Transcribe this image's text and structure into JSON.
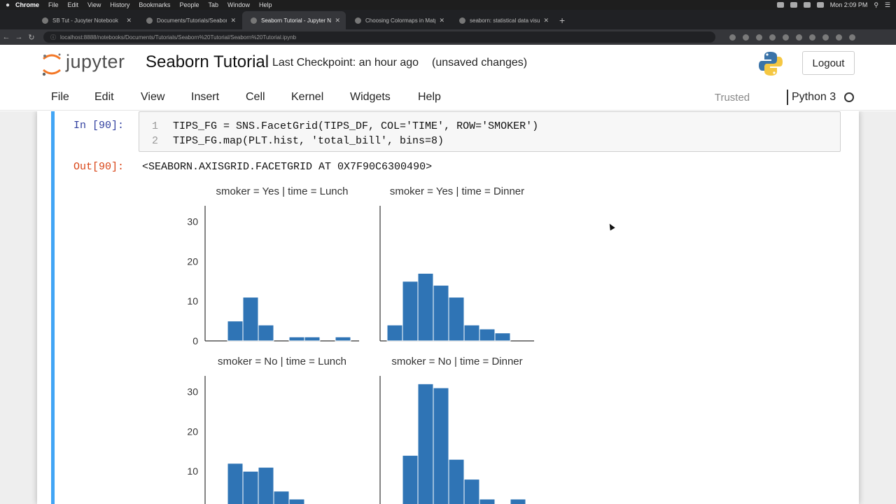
{
  "os_menubar": {
    "app": "Chrome",
    "items": [
      "File",
      "Edit",
      "View",
      "History",
      "Bookmarks",
      "People",
      "Tab",
      "Window",
      "Help"
    ],
    "clock": "Mon 2:09 PM"
  },
  "browser": {
    "tabs": [
      {
        "title": "SB Tut - Juoyter Notebook",
        "active": false
      },
      {
        "title": "Documents/Tutorials/Seaborn",
        "active": false
      },
      {
        "title": "Seaborn Tutorial - Jupyter Not",
        "active": true
      },
      {
        "title": "Choosing Colormaps in Matp",
        "active": false
      },
      {
        "title": "seaborn: statistical data visu",
        "active": false
      }
    ],
    "url": "localhost:8888/notebooks/Documents/Tutorials/Seaborn%20Tutorial/Seaborn%20Tutorial.ipynb"
  },
  "jupyter": {
    "logo_text": "jupyter",
    "notebook_name": "Seaborn Tutorial",
    "checkpoint": "Last Checkpoint: an hour ago",
    "status": "(unsaved changes)",
    "logout_label": "Logout",
    "menu": [
      "File",
      "Edit",
      "View",
      "Insert",
      "Cell",
      "Kernel",
      "Widgets",
      "Help"
    ],
    "trusted_label": "Trusted",
    "kernel_name": "Python 3"
  },
  "cell": {
    "in_prompt": "In [90]:",
    "out_prompt": "Out[90]:",
    "line_numbers": [
      "1",
      "2"
    ],
    "code_lines": [
      "TIPS_FG = SNS.FacetGrid(TIPS_DF, COL='TIME', ROW='SMOKER')",
      "TIPS_FG.map(PLT.hist, 'total_bill', bins=8)"
    ],
    "output_text": "<SEABORN.AXISGRID.FACETGRID AT 0X7F90C6300490>"
  },
  "chart_data": {
    "type": "bar",
    "bar_color": "#2f74b5",
    "ylim": [
      0,
      34
    ],
    "yticks": [
      0,
      10,
      20,
      30
    ],
    "grid": false,
    "facets": [
      {
        "title": "smoker = Yes | time = Lunch",
        "values": [
          0,
          5,
          11,
          4,
          0,
          1,
          1,
          0,
          1,
          0
        ]
      },
      {
        "title": "smoker = Yes | time = Dinner",
        "values": [
          4,
          15,
          17,
          14,
          11,
          4,
          3,
          2,
          0,
          0
        ]
      },
      {
        "title": "smoker = No | time = Lunch",
        "values": [
          0,
          12,
          10,
          11,
          5,
          3,
          0,
          0,
          0,
          0
        ]
      },
      {
        "title": "smoker = No | time = Dinner",
        "values": [
          0,
          14,
          32,
          31,
          13,
          8,
          3,
          0,
          3,
          0
        ]
      }
    ]
  }
}
